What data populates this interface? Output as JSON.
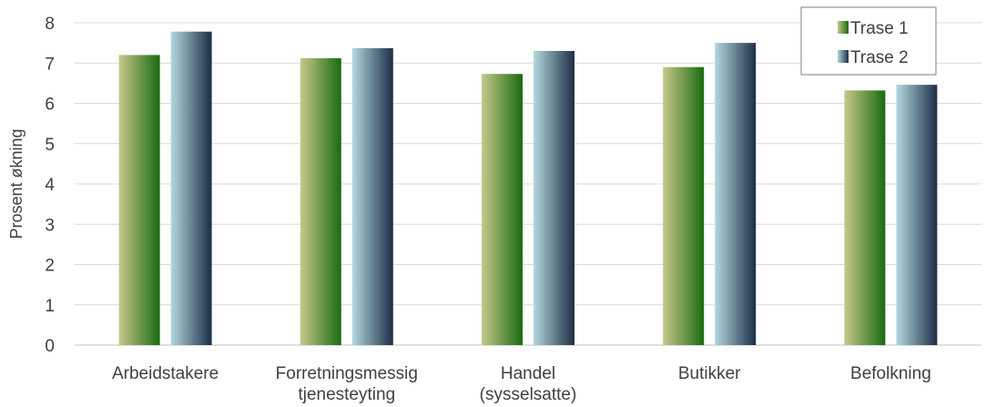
{
  "chart_data": {
    "type": "bar",
    "title": "",
    "xlabel": "",
    "ylabel": "Prosent økning",
    "ylim": [
      0,
      8
    ],
    "yticks": [
      0,
      1,
      2,
      3,
      4,
      5,
      6,
      7,
      8
    ],
    "grid": true,
    "legend": "top-right",
    "categories": [
      [
        "Arbeidstakere"
      ],
      [
        "Forretningsmessig",
        "tjenesteyting"
      ],
      [
        "Handel",
        "(sysselsatte)"
      ],
      [
        "Butikker"
      ],
      [
        "Befolkning"
      ]
    ],
    "series": [
      {
        "name": "Trase 1",
        "values": [
          7.2,
          7.12,
          6.73,
          6.9,
          6.32
        ],
        "colors": [
          "#c5c98a",
          "#1b6a12"
        ]
      },
      {
        "name": "Trase 2",
        "values": [
          7.78,
          7.37,
          7.3,
          7.5,
          6.46
        ],
        "colors": [
          "#b4d8de",
          "#1c2e45"
        ]
      }
    ]
  }
}
